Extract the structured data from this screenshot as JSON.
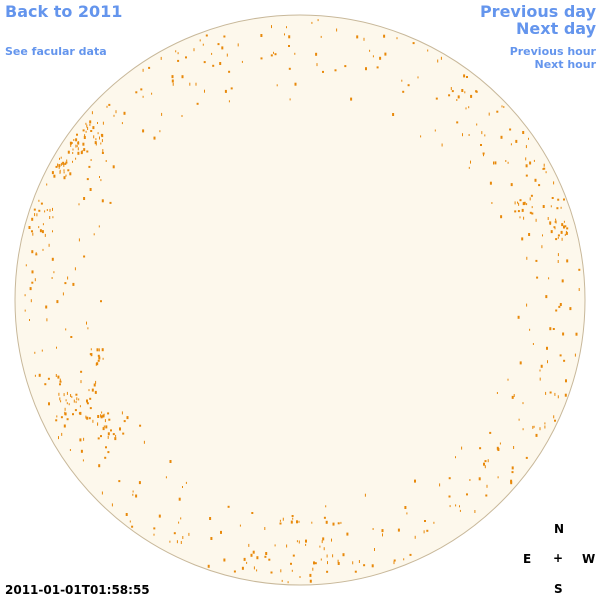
{
  "links": {
    "back": "Back to 2011",
    "facular": "See facular data",
    "previous_day": "Previous day",
    "next_day": "Next day",
    "previous_hour": "Previous hour",
    "next_hour": "Next hour"
  },
  "timestamp": "2011-01-01T01:58:55",
  "compass": {
    "north": "N",
    "east": "E",
    "center": "+",
    "west": "W",
    "south": "S"
  }
}
